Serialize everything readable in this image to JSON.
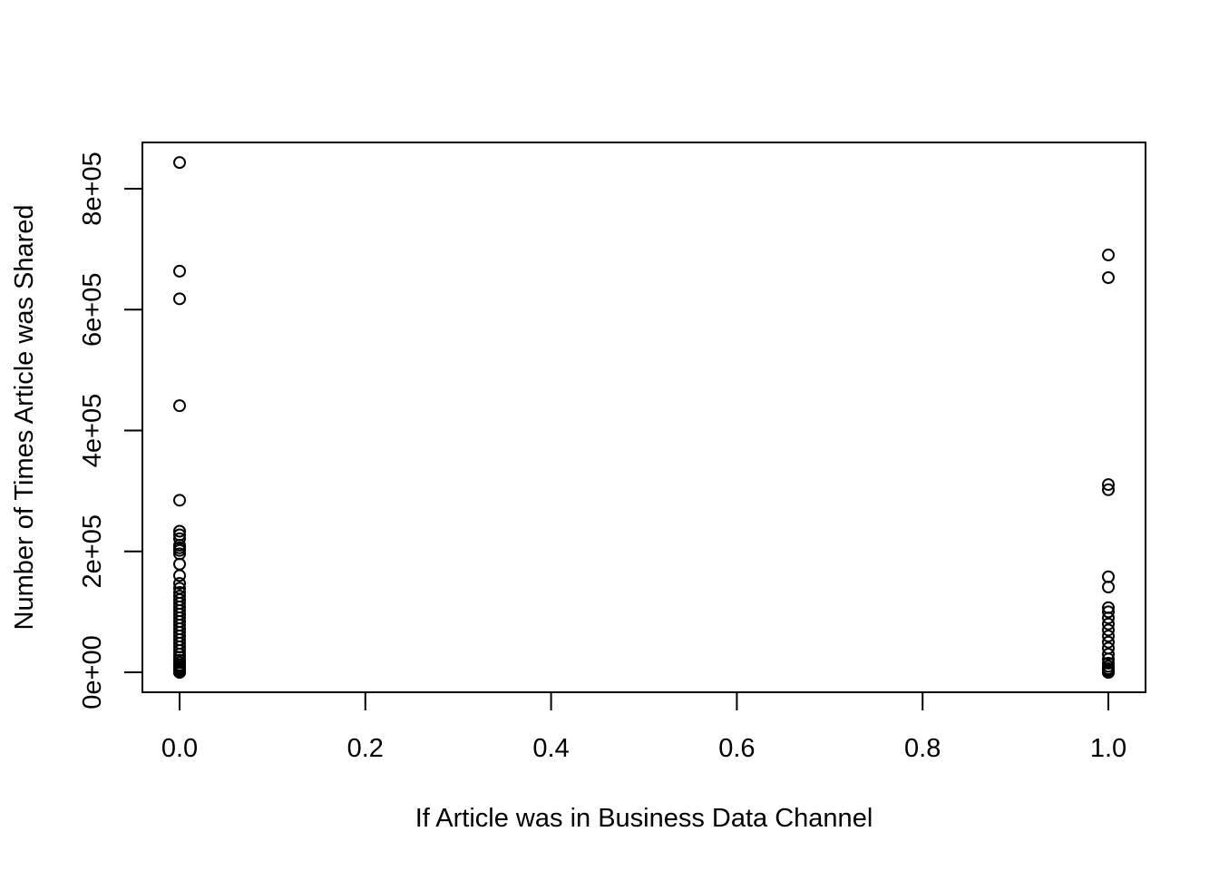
{
  "chart_data": {
    "type": "scatter",
    "title": "",
    "xlabel": "If Article was in Business Data Channel",
    "ylabel": "Number of Times Article was Shared",
    "xlim": [
      0,
      1
    ],
    "ylim": [
      0,
      843300
    ],
    "x_ticks": [
      0.0,
      0.2,
      0.4,
      0.6,
      0.8,
      1.0
    ],
    "x_tick_labels": [
      "0.0",
      "0.2",
      "0.4",
      "0.6",
      "0.8",
      "1.0"
    ],
    "y_ticks": [
      0,
      200000,
      400000,
      600000,
      800000
    ],
    "y_tick_labels": [
      "0e+00",
      "2e+05",
      "4e+05",
      "6e+05",
      "8e+05"
    ],
    "grid": false,
    "legend": "none",
    "marker": "open-circle",
    "color": "#000000",
    "x": [
      0,
      0,
      0,
      0,
      0,
      0,
      0,
      0,
      0,
      0,
      0,
      0,
      0,
      0,
      0,
      0,
      0,
      0,
      0,
      0,
      0,
      0,
      0,
      0,
      0,
      0,
      0,
      0,
      0,
      0,
      0,
      0,
      0,
      0,
      0,
      0,
      0,
      0,
      0,
      0,
      0,
      0,
      0,
      0,
      0,
      0,
      0,
      0,
      0,
      0,
      0,
      1,
      1,
      1,
      1,
      1,
      1,
      1,
      1,
      1,
      1,
      1,
      1,
      1,
      1,
      1,
      1,
      1,
      1,
      1,
      1,
      1,
      1,
      1,
      1,
      1,
      1,
      1,
      1,
      1
    ],
    "y": [
      843300,
      663600,
      617900,
      441000,
      284700,
      233400,
      227300,
      221000,
      210300,
      206000,
      201600,
      196000,
      179000,
      160000,
      147000,
      139000,
      132000,
      126000,
      120000,
      114000,
      108000,
      102000,
      96000,
      90000,
      84000,
      78000,
      72000,
      66000,
      60000,
      54000,
      48000,
      42000,
      36000,
      30000,
      25000,
      20000,
      16000,
      12000,
      9000,
      7000,
      5000,
      3500,
      2500,
      1500,
      1000,
      600,
      300,
      100,
      50,
      20,
      0,
      690400,
      652900,
      310600,
      302000,
      158000,
      141000,
      107000,
      100000,
      90000,
      80000,
      70000,
      60000,
      50000,
      40000,
      30000,
      22000,
      15000,
      10000,
      6000,
      3000,
      1500,
      1000,
      500,
      200,
      100,
      50,
      20,
      5,
      0
    ]
  }
}
